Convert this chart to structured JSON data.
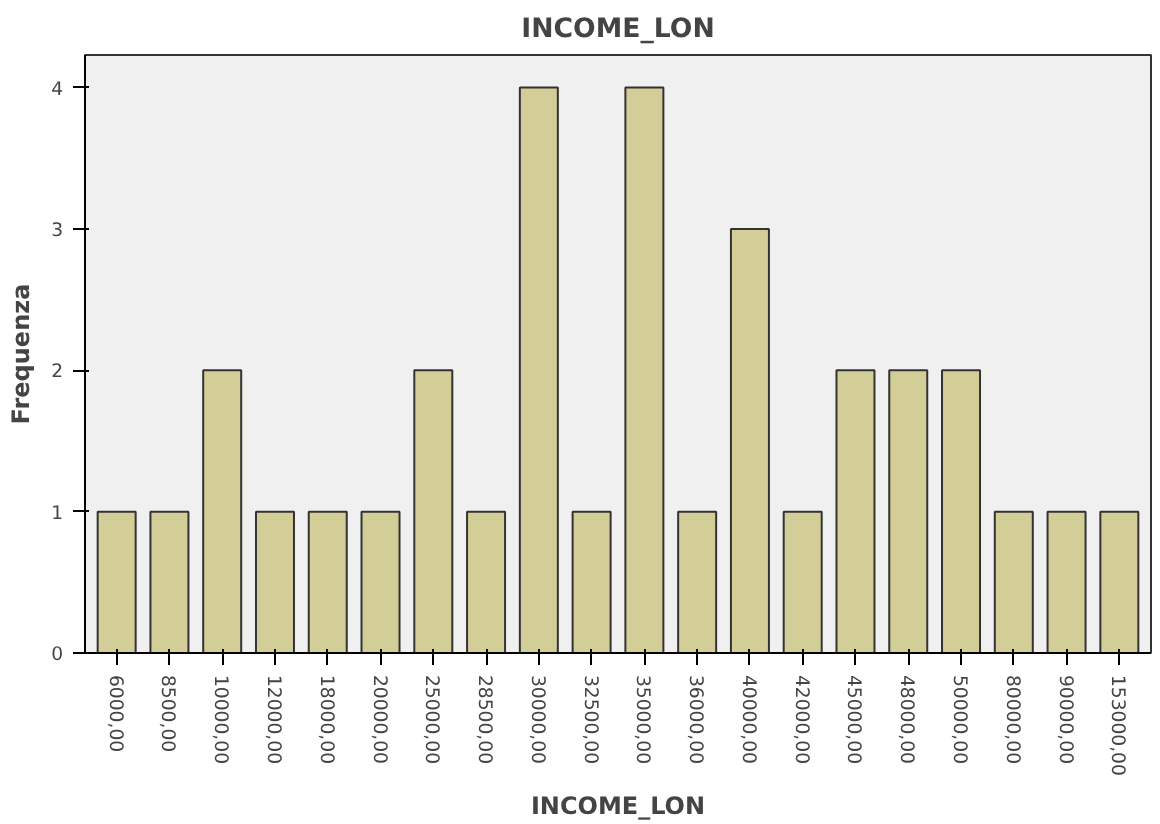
{
  "chart_data": {
    "type": "bar",
    "title": "INCOME_LON",
    "xlabel": "INCOME_LON",
    "ylabel": "Frequenza",
    "categories": [
      "6000,00",
      "8500,00",
      "10000,00",
      "12000,00",
      "18000,00",
      "20000,00",
      "25000,00",
      "28500,00",
      "30000,00",
      "32500,00",
      "35000,00",
      "36000,00",
      "40000,00",
      "42000,00",
      "45000,00",
      "48000,00",
      "50000,00",
      "80000,00",
      "90000,00",
      "153000,00"
    ],
    "values": [
      1,
      1,
      2,
      1,
      1,
      1,
      2,
      1,
      4,
      1,
      4,
      1,
      3,
      1,
      2,
      2,
      2,
      1,
      1,
      1
    ],
    "color": "#d3ce97",
    "ylim": [
      0,
      4.23
    ],
    "yticks": [
      0,
      1,
      2,
      3,
      4
    ],
    "grid": false
  }
}
